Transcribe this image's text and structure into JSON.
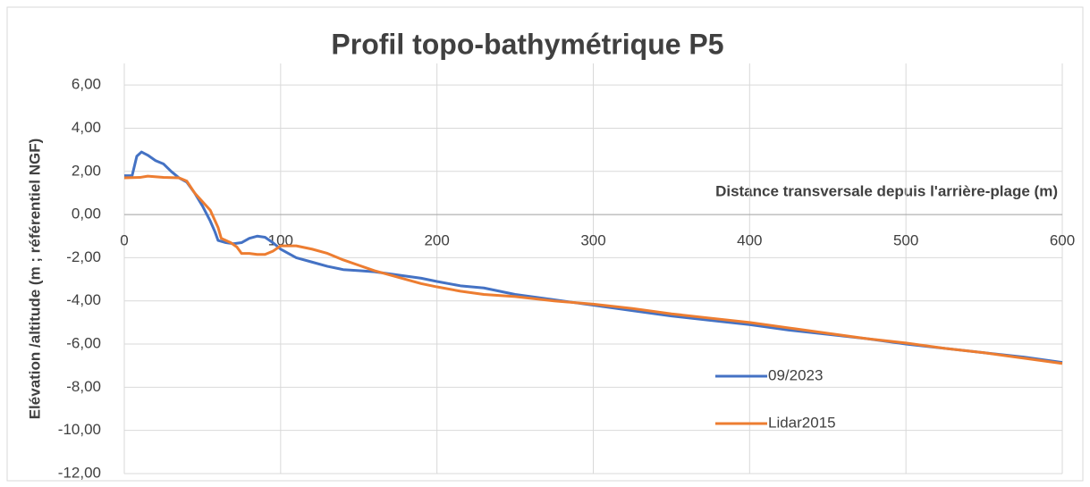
{
  "chart_data": {
    "type": "line",
    "title": "Profil topo-bathymétrique P5",
    "x_label": "Distance transversale depuis l'arrière-plage (m)",
    "y_label": "Elévation /altitude (m ; référentiel NGF)",
    "xlim": [
      0,
      600
    ],
    "xticks": [
      0,
      100,
      200,
      300,
      400,
      500,
      600
    ],
    "ylim": [
      -12,
      7
    ],
    "yticks": [
      {
        "value": -12,
        "label": "-12,00"
      },
      {
        "value": -10,
        "label": "-10,00"
      },
      {
        "value": -8,
        "label": "-8,00"
      },
      {
        "value": -6,
        "label": "-6,00"
      },
      {
        "value": -4,
        "label": "-4,00"
      },
      {
        "value": -2,
        "label": "-2,00"
      },
      {
        "value": 0,
        "label": "0,00"
      },
      {
        "value": 2,
        "label": "2,00"
      },
      {
        "value": 4,
        "label": "4,00"
      },
      {
        "value": 6,
        "label": "6,00"
      }
    ],
    "grid": true,
    "series": [
      {
        "name": "09/2023",
        "color": "#4472c4",
        "x": [
          0,
          5,
          8,
          11,
          15,
          20,
          25,
          30,
          35,
          40,
          45,
          50,
          55,
          58,
          60,
          65,
          70,
          75,
          80,
          85,
          90,
          95,
          100,
          110,
          120,
          130,
          140,
          150,
          160,
          175,
          190,
          200,
          215,
          230,
          250,
          275,
          300,
          325,
          350,
          375,
          400,
          425,
          450,
          475,
          500,
          525,
          550,
          575,
          600
        ],
        "values": [
          1.8,
          1.8,
          2.7,
          2.9,
          2.75,
          2.5,
          2.35,
          2.0,
          1.7,
          1.5,
          1.0,
          0.4,
          -0.3,
          -0.8,
          -1.2,
          -1.3,
          -1.35,
          -1.3,
          -1.1,
          -1.0,
          -1.05,
          -1.3,
          -1.6,
          -2.0,
          -2.2,
          -2.4,
          -2.55,
          -2.6,
          -2.65,
          -2.8,
          -2.95,
          -3.1,
          -3.3,
          -3.4,
          -3.7,
          -3.95,
          -4.2,
          -4.45,
          -4.7,
          -4.9,
          -5.1,
          -5.35,
          -5.55,
          -5.75,
          -6.0,
          -6.2,
          -6.4,
          -6.6,
          -6.85
        ]
      },
      {
        "name": "Lidar2015",
        "color": "#ed7d31",
        "x": [
          0,
          10,
          15,
          25,
          35,
          40,
          45,
          50,
          55,
          60,
          62,
          68,
          72,
          75,
          80,
          85,
          90,
          95,
          100,
          110,
          120,
          130,
          140,
          150,
          160,
          175,
          190,
          200,
          215,
          230,
          250,
          275,
          300,
          325,
          350,
          375,
          400,
          425,
          450,
          475,
          500,
          525,
          550,
          575,
          600
        ],
        "values": [
          1.7,
          1.72,
          1.78,
          1.72,
          1.7,
          1.55,
          1.0,
          0.6,
          0.2,
          -0.6,
          -1.1,
          -1.3,
          -1.5,
          -1.8,
          -1.8,
          -1.85,
          -1.85,
          -1.7,
          -1.45,
          -1.45,
          -1.6,
          -1.8,
          -2.1,
          -2.35,
          -2.6,
          -2.9,
          -3.2,
          -3.35,
          -3.55,
          -3.7,
          -3.8,
          -4.0,
          -4.15,
          -4.35,
          -4.6,
          -4.8,
          -5.0,
          -5.25,
          -5.5,
          -5.75,
          -5.95,
          -6.2,
          -6.4,
          -6.65,
          -6.9
        ]
      }
    ]
  }
}
